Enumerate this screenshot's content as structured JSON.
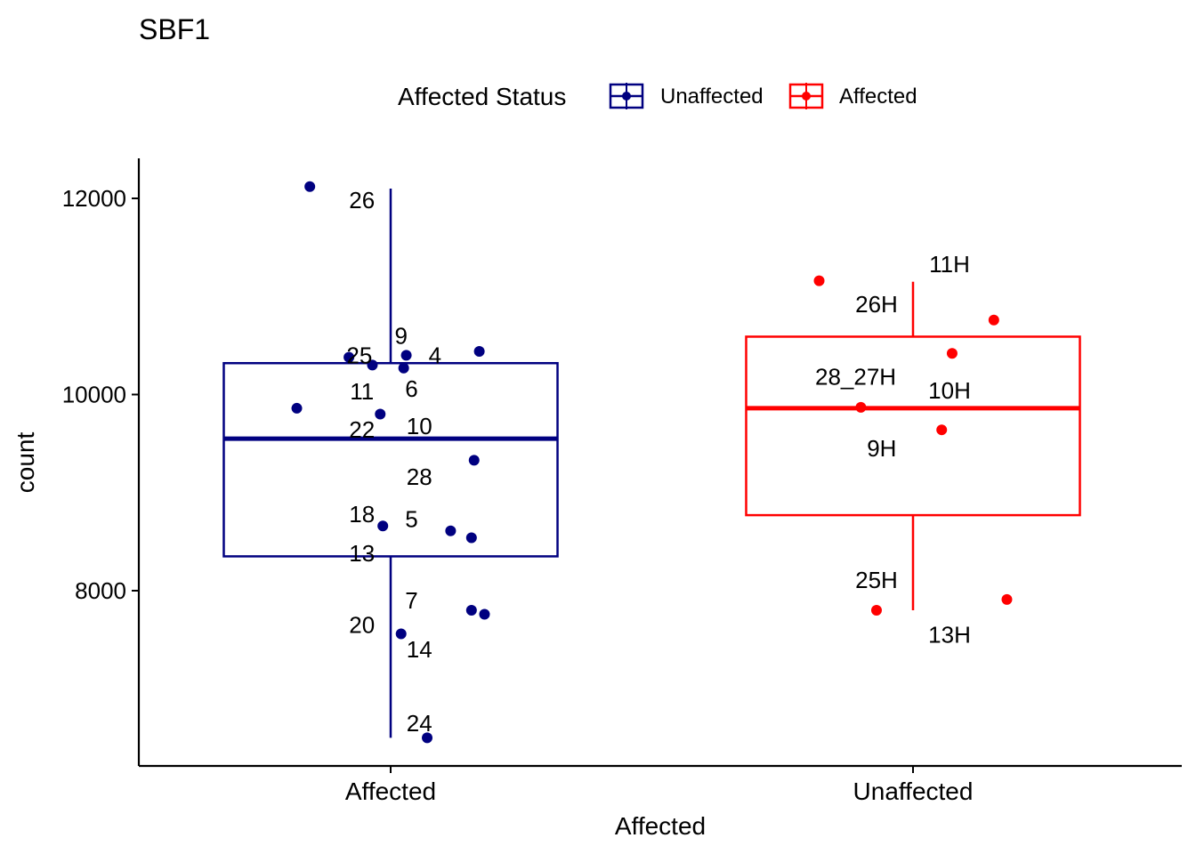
{
  "chart_data": {
    "type": "boxplot",
    "title": "SBF1",
    "xlabel": "Affected",
    "ylabel": "count",
    "ylim": [
      6200,
      12400
    ],
    "y_ticks": [
      8000,
      10000,
      12000
    ],
    "y_tick_labels": [
      "8000",
      "10000",
      "12000"
    ],
    "categories": [
      "Affected",
      "Unaffected"
    ],
    "legend": {
      "title": "Affected Status",
      "position": "top",
      "entries": [
        {
          "label": "Unaffected",
          "color": "#000080"
        },
        {
          "label": "Affected",
          "color": "#ff0000"
        }
      ]
    },
    "boxes": [
      {
        "category": "Affected",
        "color": "#000080",
        "whisker_low": 6500,
        "q1": 8350,
        "median": 9550,
        "q3": 10320,
        "whisker_high": 12100
      },
      {
        "category": "Unaffected",
        "color": "#ff0000",
        "whisker_low": 7800,
        "q1": 8770,
        "median": 9860,
        "q3": 10590,
        "whisker_high": 11150
      }
    ],
    "points": [
      {
        "category": "Affected",
        "jitter": -0.31,
        "y": 12120
      },
      {
        "category": "Affected",
        "jitter": -0.16,
        "y": 10380
      },
      {
        "category": "Affected",
        "jitter": -0.07,
        "y": 10300
      },
      {
        "category": "Affected",
        "jitter": 0.05,
        "y": 10270
      },
      {
        "category": "Affected",
        "jitter": 0.06,
        "y": 10400
      },
      {
        "category": "Affected",
        "jitter": 0.34,
        "y": 10440
      },
      {
        "category": "Affected",
        "jitter": -0.36,
        "y": 9860
      },
      {
        "category": "Affected",
        "jitter": -0.04,
        "y": 9800
      },
      {
        "category": "Affected",
        "jitter": 0.32,
        "y": 9330
      },
      {
        "category": "Affected",
        "jitter": -0.03,
        "y": 8660
      },
      {
        "category": "Affected",
        "jitter": 0.23,
        "y": 8610
      },
      {
        "category": "Affected",
        "jitter": 0.31,
        "y": 8540
      },
      {
        "category": "Affected",
        "jitter": 0.31,
        "y": 7800
      },
      {
        "category": "Affected",
        "jitter": 0.36,
        "y": 7760
      },
      {
        "category": "Affected",
        "jitter": 0.04,
        "y": 7560
      },
      {
        "category": "Affected",
        "jitter": 0.14,
        "y": 6500
      },
      {
        "category": "Unaffected",
        "jitter": -0.36,
        "y": 11160
      },
      {
        "category": "Unaffected",
        "jitter": 0.31,
        "y": 10760
      },
      {
        "category": "Unaffected",
        "jitter": 0.15,
        "y": 10420
      },
      {
        "category": "Unaffected",
        "jitter": -0.2,
        "y": 9870
      },
      {
        "category": "Unaffected",
        "jitter": 0.11,
        "y": 9640
      },
      {
        "category": "Unaffected",
        "jitter": -0.14,
        "y": 7800
      },
      {
        "category": "Unaffected",
        "jitter": 0.36,
        "y": 7910
      }
    ],
    "point_labels": [
      {
        "category": "Affected",
        "jitter": -0.11,
        "y": 11980,
        "text": "26"
      },
      {
        "category": "Affected",
        "jitter": 0.04,
        "y": 10600,
        "text": "9"
      },
      {
        "category": "Affected",
        "jitter": -0.12,
        "y": 10400,
        "text": "25"
      },
      {
        "category": "Affected",
        "jitter": 0.17,
        "y": 10400,
        "text": "4"
      },
      {
        "category": "Affected",
        "jitter": -0.11,
        "y": 10030,
        "text": "11"
      },
      {
        "category": "Affected",
        "jitter": 0.08,
        "y": 10060,
        "text": "6"
      },
      {
        "category": "Affected",
        "jitter": -0.11,
        "y": 9640,
        "text": "22"
      },
      {
        "category": "Affected",
        "jitter": 0.11,
        "y": 9680,
        "text": "10"
      },
      {
        "category": "Affected",
        "jitter": 0.11,
        "y": 9160,
        "text": "28"
      },
      {
        "category": "Affected",
        "jitter": -0.11,
        "y": 8780,
        "text": "18"
      },
      {
        "category": "Affected",
        "jitter": 0.08,
        "y": 8730,
        "text": "5"
      },
      {
        "category": "Affected",
        "jitter": -0.11,
        "y": 8380,
        "text": "13"
      },
      {
        "category": "Affected",
        "jitter": 0.08,
        "y": 7900,
        "text": "7"
      },
      {
        "category": "Affected",
        "jitter": -0.11,
        "y": 7650,
        "text": "20"
      },
      {
        "category": "Affected",
        "jitter": 0.11,
        "y": 7400,
        "text": "14"
      },
      {
        "category": "Affected",
        "jitter": 0.11,
        "y": 6650,
        "text": "24"
      },
      {
        "category": "Unaffected",
        "jitter": 0.14,
        "y": 11330,
        "text": "11H"
      },
      {
        "category": "Unaffected",
        "jitter": -0.14,
        "y": 10920,
        "text": "26H"
      },
      {
        "category": "Unaffected",
        "jitter": -0.22,
        "y": 10180,
        "text": "28_27H"
      },
      {
        "category": "Unaffected",
        "jitter": 0.14,
        "y": 10040,
        "text": "10H"
      },
      {
        "category": "Unaffected",
        "jitter": -0.12,
        "y": 9450,
        "text": "9H"
      },
      {
        "category": "Unaffected",
        "jitter": -0.14,
        "y": 8110,
        "text": "25H"
      },
      {
        "category": "Unaffected",
        "jitter": 0.14,
        "y": 7550,
        "text": "13H"
      }
    ]
  }
}
